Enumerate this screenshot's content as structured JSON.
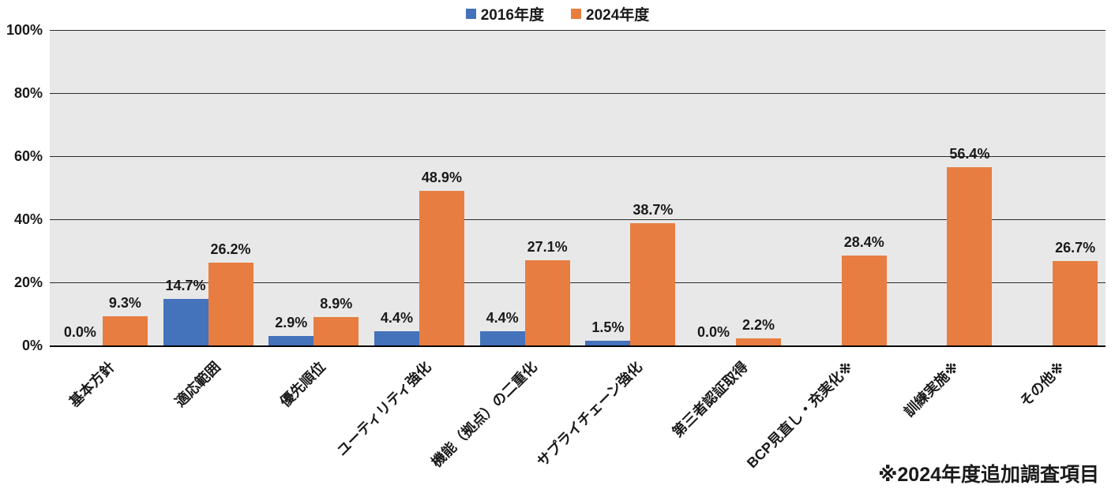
{
  "chart_data": {
    "type": "bar",
    "title": "",
    "categories": [
      "基本方針",
      "適応範囲",
      "優先順位",
      "ユーティリティ強化",
      "機能（拠点）の二重化",
      "サプライチェーン強化",
      "第三者認証取得",
      "BCP見直し・充実化※",
      "訓練実施※",
      "その他※"
    ],
    "series": [
      {
        "name": "2016年度",
        "color": "#4472bb",
        "values": [
          0.0,
          14.7,
          2.9,
          4.4,
          4.4,
          1.5,
          0.0,
          null,
          null,
          null
        ],
        "labels": [
          "0.0%",
          "14.7%",
          "2.9%",
          "4.4%",
          "4.4%",
          "1.5%",
          "0.0%",
          null,
          null,
          null
        ]
      },
      {
        "name": "2024年度",
        "color": "#e87d41",
        "values": [
          9.3,
          26.2,
          8.9,
          48.9,
          27.1,
          38.7,
          2.2,
          28.4,
          56.4,
          26.7
        ],
        "labels": [
          "9.3%",
          "26.2%",
          "8.9%",
          "48.9%",
          "27.1%",
          "38.7%",
          "2.2%",
          "28.4%",
          "56.4%",
          "26.7%"
        ]
      }
    ],
    "y_ticks": [
      "0%",
      "20%",
      "40%",
      "60%",
      "80%",
      "100%"
    ],
    "ylim": [
      0,
      100
    ],
    "grid": true,
    "legend_position": "top",
    "footnote": "※2024年度追加調査項目"
  }
}
